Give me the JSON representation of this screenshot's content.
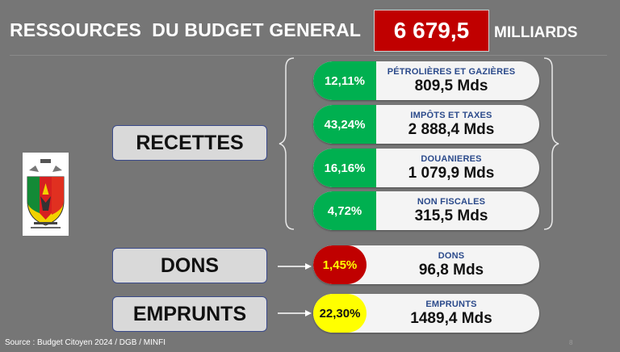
{
  "header": {
    "title": "RESSOURCES  DU BUDGET GENERAL",
    "total": "6 679,5",
    "unit": "MILLIARDS"
  },
  "colors": {
    "background": "#767676",
    "total_box": "#c00000",
    "green": "#00b050",
    "red": "#c00000",
    "yellow": "#ffff00",
    "label_blue": "#2b4a8b"
  },
  "categories": {
    "recettes": "RECETTES",
    "dons": "DONS",
    "emprunts": "EMPRUNTS"
  },
  "recettes_items": [
    {
      "pct": "12,11%",
      "label": "PÉTROLIÈRES ET GAZIÈRES",
      "amount": "809,5 Mds",
      "color": "green"
    },
    {
      "pct": "43,24%",
      "label": "IMPÔTS ET TAXES",
      "amount": "2 888,4 Mds",
      "color": "green"
    },
    {
      "pct": "16,16%",
      "label": "DOUANIERES",
      "amount": "1 079,9 Mds",
      "color": "green"
    },
    {
      "pct": "4,72%",
      "label": "NON FISCALES",
      "amount": "315,5 Mds",
      "color": "green"
    }
  ],
  "dons_item": {
    "pct": "1,45%",
    "label": "DONS",
    "amount": "96,8 Mds",
    "color": "red"
  },
  "emprunts_item": {
    "pct": "22,30%",
    "label": "EMPRUNTS",
    "amount": "1489,4 Mds",
    "color": "yellow"
  },
  "footer": {
    "source": "Source : Budget Citoyen 2024 / DGB / MINFI",
    "page": "8"
  },
  "icons": {
    "emblem": "cameroon-coat-of-arms-icon"
  }
}
